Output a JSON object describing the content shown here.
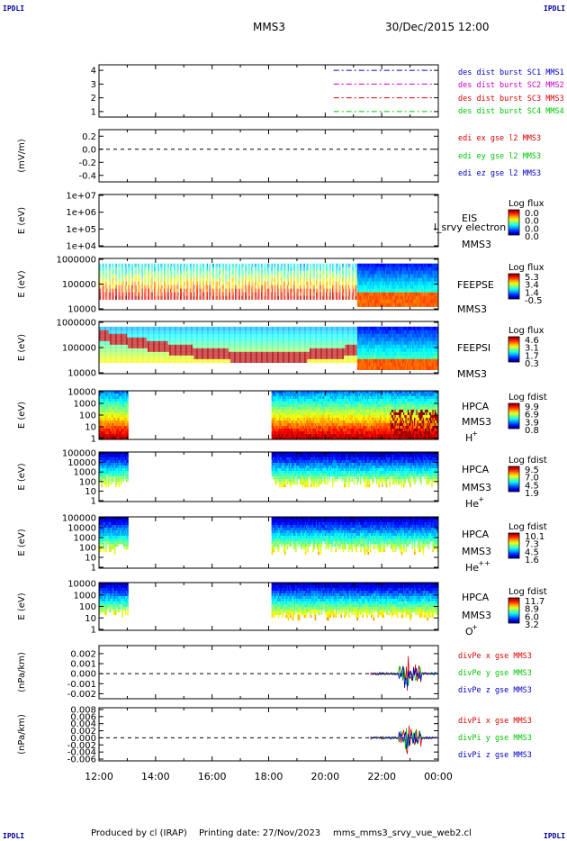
{
  "corner_label": "IPDLI",
  "header": {
    "spacecraft": "MMS3",
    "datetime": "30/Dec/2015 12:00"
  },
  "footer": {
    "produced_by": "Produced by cl (IRAP)",
    "printing_date": "Printing date: 27/Nov/2023",
    "filename": "mms_mms3_srvy_vue_web2.cl"
  },
  "colors": {
    "blue": "#0000c8",
    "magenta": "#c800c8",
    "red": "#dc0000",
    "green": "#00c800"
  },
  "chart_data": [
    {
      "id": "p1",
      "type": "line",
      "ylim": [
        0.6,
        4.4
      ],
      "yticks": [
        "4",
        "3",
        "2",
        "1"
      ],
      "ytick_values": [
        4,
        3,
        2,
        1
      ],
      "ylabel": "",
      "series": [
        {
          "name": "des dist burst SC1 MMS1",
          "color": "#0000c8",
          "y": 4,
          "x_range": [
            20.3,
            24
          ]
        },
        {
          "name": "des dist burst SC2 MMS2",
          "color": "#c800c8",
          "y": 3,
          "x_range": [
            20.3,
            24
          ]
        },
        {
          "name": "des dist burst SC3 MMS3",
          "color": "#dc0000",
          "y": 2,
          "x_range": [
            20.3,
            24
          ]
        },
        {
          "name": "des dist burst SC4 MMS4",
          "color": "#00c800",
          "y": 1,
          "x_range": [
            20.3,
            24
          ]
        }
      ]
    },
    {
      "id": "p2",
      "type": "line",
      "ylim": [
        -0.5,
        0.3
      ],
      "yticks": [
        "0.2",
        "0.0",
        "-0.2",
        "-0.4"
      ],
      "ytick_values": [
        0.2,
        0.0,
        -0.2,
        -0.4
      ],
      "ylabel": "(mV/m)",
      "series": [
        {
          "name": "edi ex gse l2 MMS3",
          "color": "#dc0000"
        },
        {
          "name": "edi ey gse l2 MMS3",
          "color": "#00c800"
        },
        {
          "name": "edi ez gse l2 MMS3",
          "color": "#0000c8"
        }
      ]
    },
    {
      "id": "p3",
      "type": "heatmap",
      "ylabel": "E (eV)",
      "yticks": [
        "1e+07",
        "1e+06",
        "1e+05",
        "1e+04"
      ],
      "label_lines": [
        "EIS",
        "MMS3"
      ],
      "extra_label": "l_srvy electron to",
      "colorbar": {
        "title": "Log flux",
        "ticks": [
          "0.0",
          "0.0",
          "0.0",
          "0.0"
        ]
      },
      "coverage": []
    },
    {
      "id": "p4",
      "type": "heatmap",
      "ylabel": "E (eV)",
      "yticks": [
        "1000000",
        "100000",
        "10000"
      ],
      "label_lines": [
        "FEEPSE",
        "MMS3"
      ],
      "colorbar": {
        "title": "Log flux",
        "ticks": [
          "5.3",
          "3.4",
          "1.4",
          "-0.5"
        ]
      },
      "coverage": [
        [
          12.0,
          24.0
        ]
      ]
    },
    {
      "id": "p5",
      "type": "heatmap",
      "ylabel": "E (eV)",
      "yticks": [
        "1000000",
        "100000",
        "10000"
      ],
      "label_lines": [
        "FEEPSI",
        "MMS3"
      ],
      "colorbar": {
        "title": "Log flux",
        "ticks": [
          "4.6",
          "3.1",
          "1.7",
          "0.3"
        ]
      },
      "coverage": [
        [
          12.0,
          24.0
        ]
      ]
    },
    {
      "id": "p6",
      "type": "heatmap",
      "ylabel": "E (eV)",
      "yticks": [
        "10000",
        "1000",
        "100",
        "10",
        "1"
      ],
      "label_lines": [
        "HPCA",
        "MMS3"
      ],
      "species": "H",
      "species_sup": "+",
      "colorbar": {
        "title": "Log fdist",
        "ticks": [
          "9.9",
          "6.9",
          "3.9",
          "0.8"
        ]
      },
      "coverage": [
        [
          12.0,
          13.0
        ],
        [
          18.1,
          24.0
        ]
      ]
    },
    {
      "id": "p7",
      "type": "heatmap",
      "ylabel": "E (eV)",
      "yticks": [
        "100000",
        "10000",
        "1000",
        "100",
        "10",
        "1"
      ],
      "label_lines": [
        "HPCA",
        "MMS3"
      ],
      "species": "He",
      "species_sup": "+",
      "colorbar": {
        "title": "Log fdist",
        "ticks": [
          "9.5",
          "7.0",
          "4.5",
          "1.9"
        ]
      },
      "coverage": [
        [
          12.0,
          13.0
        ],
        [
          18.1,
          24.0
        ]
      ]
    },
    {
      "id": "p8",
      "type": "heatmap",
      "ylabel": "E (eV)",
      "yticks": [
        "100000",
        "10000",
        "1000",
        "100",
        "10",
        "1"
      ],
      "label_lines": [
        "HPCA",
        "MMS3"
      ],
      "species": "He",
      "species_sup": "++",
      "colorbar": {
        "title": "Log fdist",
        "ticks": [
          "10.1",
          "7.3",
          "4.5",
          "1.6"
        ]
      },
      "coverage": [
        [
          12.0,
          13.0
        ],
        [
          18.1,
          24.0
        ]
      ]
    },
    {
      "id": "p9",
      "type": "heatmap",
      "ylabel": "E (eV)",
      "yticks": [
        "10000",
        "1000",
        "100",
        "10",
        "1"
      ],
      "label_lines": [
        "HPCA",
        "MMS3"
      ],
      "species": "O",
      "species_sup": "+",
      "colorbar": {
        "title": "Log fdist",
        "ticks": [
          "11.7",
          "8.9",
          "6.0",
          "3.2"
        ]
      },
      "coverage": [
        [
          12.0,
          13.0
        ],
        [
          18.1,
          24.0
        ]
      ]
    },
    {
      "id": "p10",
      "type": "line",
      "ylim": [
        -0.0025,
        0.0028
      ],
      "yticks": [
        "0.002",
        "0.001",
        "0.000",
        "-0.001",
        "-0.002"
      ],
      "ytick_values": [
        0.002,
        0.001,
        0.0,
        -0.001,
        -0.002
      ],
      "ylabel": "(nPa/km)",
      "series": [
        {
          "name": "divPe x gse MMS3",
          "color": "#dc0000"
        },
        {
          "name": "divPe y gse MMS3",
          "color": "#00c800"
        },
        {
          "name": "divPe z gse MMS3",
          "color": "#0000c8"
        }
      ],
      "data_range_x": [
        21.6,
        24.0
      ]
    },
    {
      "id": "p11",
      "type": "line",
      "ylim": [
        -0.0065,
        0.0085
      ],
      "yticks": [
        "0.008",
        "0.006",
        "0.004",
        "0.002",
        "0.000",
        "-0.002",
        "-0.004",
        "-0.006"
      ],
      "ytick_values": [
        0.008,
        0.006,
        0.004,
        0.002,
        0.0,
        -0.002,
        -0.004,
        -0.006
      ],
      "ylabel": "(nPa/km)",
      "series": [
        {
          "name": "divPi x gse MMS3",
          "color": "#dc0000"
        },
        {
          "name": "divPi y gse MMS3",
          "color": "#00c800"
        },
        {
          "name": "divPi z gse MMS3",
          "color": "#0000c8"
        }
      ],
      "data_range_x": [
        21.6,
        24.0
      ]
    }
  ],
  "xaxis": {
    "ticks": [
      "12:00",
      "14:00",
      "16:00",
      "18:00",
      "20:00",
      "22:00",
      "00:00"
    ],
    "range": [
      12,
      24
    ]
  }
}
